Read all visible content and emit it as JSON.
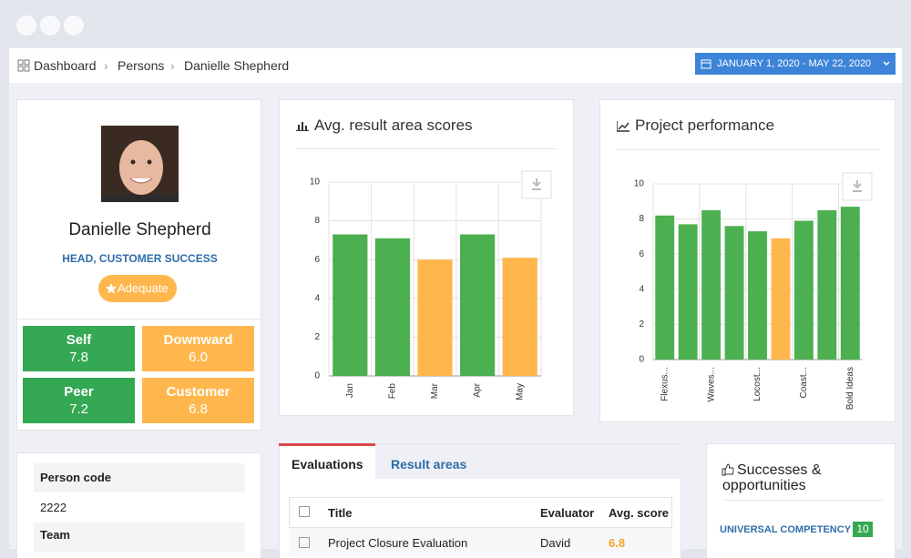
{
  "breadcrumb": [
    "Dashboard",
    "Persons",
    "Danielle Shepherd"
  ],
  "date_range": "JANUARY 1, 2020 - MAY 22, 2020",
  "profile": {
    "name": "Danielle Shepherd",
    "role": "HEAD, CUSTOMER SUCCESS",
    "badge": "Adequate"
  },
  "scores": [
    {
      "label": "Self",
      "value": "7.8"
    },
    {
      "label": "Downward",
      "value": "6.0"
    },
    {
      "label": "Peer",
      "value": "7.2"
    },
    {
      "label": "Customer",
      "value": "6.8"
    }
  ],
  "details": {
    "rows": [
      "Person code",
      "2222",
      "Team"
    ]
  },
  "tabs": [
    "Evaluations",
    "Result areas"
  ],
  "table": {
    "headers": [
      "Title",
      "Evaluator",
      "Avg. score"
    ],
    "rows": [
      [
        "Project Closure Evaluation",
        "David",
        "6.8"
      ]
    ]
  },
  "successes": {
    "title": "Successes & opportunities",
    "items": [
      {
        "label": "UNIVERSAL COMPETENCY",
        "value": "10"
      }
    ]
  },
  "chart_data": [
    {
      "type": "bar",
      "title": "Avg. result area scores",
      "categories": [
        "Jan",
        "Feb",
        "Mar",
        "Apr",
        "May"
      ],
      "values": [
        7.3,
        7.1,
        6.0,
        7.3,
        6.1
      ],
      "colors": [
        "#4caf50",
        "#4caf50",
        "#ffb74d",
        "#4caf50",
        "#ffb74d"
      ],
      "ylim": [
        0,
        10
      ],
      "yticks": [
        0,
        2,
        4,
        6,
        8,
        10
      ],
      "grid": true
    },
    {
      "type": "bar",
      "title": "Project performance",
      "categories": [
        "Flexus...",
        null,
        "Waves...",
        null,
        "Locost...",
        null,
        "Coast...",
        null,
        "Bold Ideas"
      ],
      "values": [
        8.2,
        7.7,
        8.5,
        7.6,
        7.3,
        6.9,
        7.9,
        8.5,
        8.7
      ],
      "colors": [
        "#4caf50",
        "#4caf50",
        "#4caf50",
        "#4caf50",
        "#4caf50",
        "#ffb74d",
        "#4caf50",
        "#4caf50",
        "#4caf50"
      ],
      "ylim": [
        0,
        10
      ],
      "yticks": [
        0,
        2,
        4,
        6,
        8,
        10
      ],
      "grid": true
    }
  ]
}
